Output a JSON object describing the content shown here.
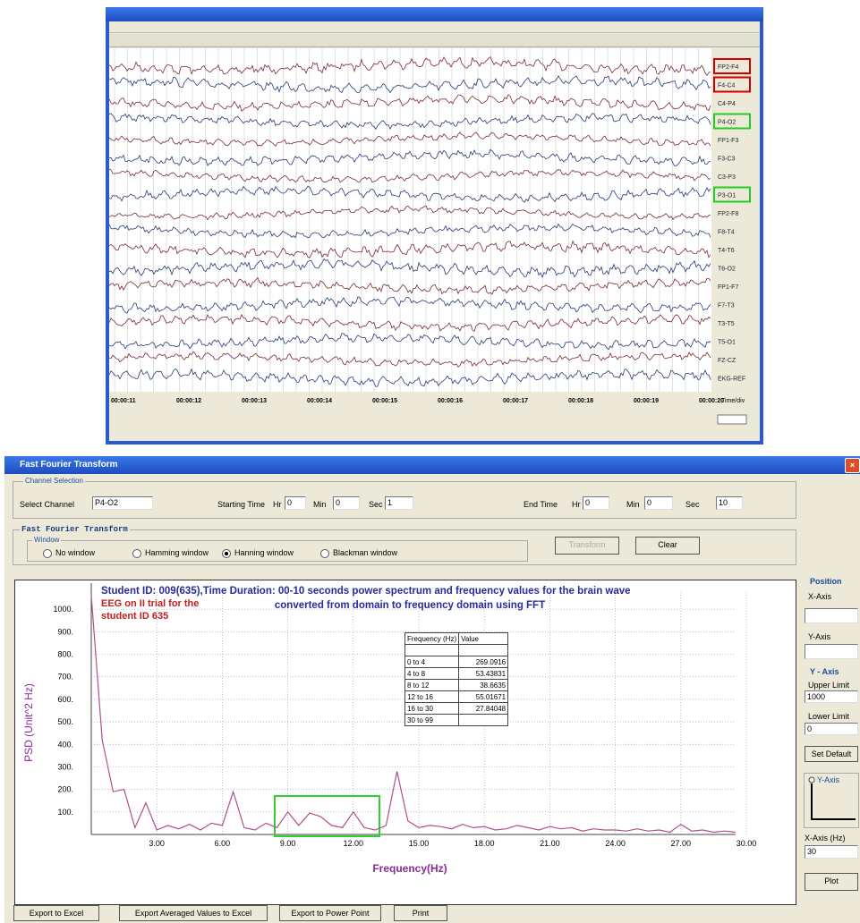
{
  "eeg_window": {
    "channels": [
      "FP2-F4",
      "F4-C4",
      "C4-P4",
      "P4-O2",
      "FP1-F3",
      "F3-C3",
      "C3-P3",
      "P3-O1",
      "FP2-F8",
      "F8-T4",
      "T4-T6",
      "T6-O2",
      "FP1-F7",
      "F7-T3",
      "T3-T5",
      "T5-O1",
      "FZ-CZ",
      "EKG-REF"
    ],
    "time_labels": [
      "00:00:11",
      "00:00:12",
      "00:00:13",
      "00:00:14",
      "00:00:15",
      "00:00:16",
      "00:00:17",
      "00:00:18",
      "00:00:19",
      "00:00:20"
    ],
    "time_div": "Time/div"
  },
  "fft_window": {
    "title": "Fast Fourier Transform",
    "channel_selection": {
      "group": "Channel Selection",
      "select_label": "Select Channel",
      "channel": "P4-O2",
      "starting_time": "Starting Time",
      "start_hr_label": "Hr",
      "start_hr": "0",
      "start_min_label": "Min",
      "start_min": "0",
      "start_sec_label": "Sec",
      "start_sec": "1",
      "end_time": "End Time",
      "end_hr_label": "Hr",
      "end_hr": "0",
      "end_min_label": "Min",
      "end_min": "0",
      "end_sec_label": "Sec",
      "end_sec": "10"
    },
    "transform_group": {
      "title": "Fast Fourier Transform",
      "window_label": "Window",
      "options": [
        "No window",
        "Hamming window",
        "Hanning window",
        "Blackman window"
      ],
      "selected": "Hanning window",
      "transform_button": "Transform",
      "clear_button": "Clear"
    },
    "right_panel": {
      "position": "Position",
      "x_axis": "X-Axis",
      "y_axis": "Y-Axis",
      "y_axis_group": "Y - Axis",
      "upper_limit": "Upper Limit",
      "upper_value": "1000",
      "lower_limit": "Lower Limit",
      "lower_value": "0",
      "set_default": "Set Default",
      "y_axis_radio": "Y-Axis",
      "x_axis_hz": "X-Axis (Hz)",
      "x_axis_value": "30",
      "plot": "Plot"
    },
    "buttons": [
      "Export to Excel",
      "Export Averaged Values to Excel",
      "Export to Power Point",
      "Print"
    ]
  },
  "chart_data": {
    "type": "line",
    "title_line1": "Student ID: 009(635),Time Duration: 00-10 seconds power spectrum and frequency values for the brain wave",
    "title_line2": "converted from domain to frequency domain using FFT",
    "annotation_line1": "EEG on II trial for the",
    "annotation_line2": "student ID 635",
    "x_label": "Frequency(Hz)",
    "y_label": "PSD (Unit^2 Hz)",
    "x": [
      0,
      0.5,
      1,
      1.5,
      2,
      2.5,
      3,
      3.5,
      4,
      4.5,
      5,
      5.5,
      6,
      6.5,
      7,
      7.5,
      8,
      8.5,
      9,
      9.5,
      10,
      10.5,
      11,
      11.5,
      12,
      12.5,
      13,
      13.5,
      14,
      14.5,
      15,
      15.5,
      16,
      16.5,
      17,
      17.5,
      18,
      18.5,
      19,
      19.5,
      20,
      20.5,
      21,
      21.5,
      22,
      22.5,
      23,
      23.5,
      24,
      24.5,
      25,
      25.5,
      26,
      26.5,
      27,
      27.5,
      28,
      28.5,
      29,
      29.5
    ],
    "series": [
      {
        "color": "#b0508a",
        "values": [
          1060,
          420,
          190,
          200,
          30,
          140,
          20,
          40,
          25,
          45,
          20,
          50,
          40,
          190,
          30,
          20,
          50,
          30,
          100,
          40,
          95,
          80,
          40,
          30,
          100,
          30,
          20,
          40,
          280,
          60,
          30,
          40,
          35,
          25,
          45,
          30,
          35,
          20,
          25,
          40,
          30,
          20,
          35,
          25,
          30,
          15,
          25,
          20,
          20,
          15,
          25,
          15,
          20,
          10,
          45,
          15,
          20,
          10,
          15,
          10
        ]
      }
    ],
    "xlim": [
      0,
      30
    ],
    "ylim": [
      0,
      1100
    ],
    "xticks": [
      {
        "value": 3,
        "label": "3.00"
      },
      {
        "value": 6,
        "label": "6.00"
      },
      {
        "value": 9,
        "label": "9.00"
      },
      {
        "value": 12,
        "label": "12.00"
      },
      {
        "value": 15,
        "label": "15.00"
      },
      {
        "value": 18,
        "label": "18.00"
      },
      {
        "value": 21,
        "label": "21.00"
      },
      {
        "value": 24,
        "label": "24.00"
      },
      {
        "value": 27,
        "label": "27.00"
      },
      {
        "value": 30,
        "label": "30.00"
      }
    ],
    "yticks": [
      {
        "value": 100,
        "label": "100."
      },
      {
        "value": 200,
        "label": "200."
      },
      {
        "value": 300,
        "label": "300."
      },
      {
        "value": 400,
        "label": "400."
      },
      {
        "value": 500,
        "label": "500."
      },
      {
        "value": 600,
        "label": "600."
      },
      {
        "value": 700,
        "label": "700."
      },
      {
        "value": 800,
        "label": "800."
      },
      {
        "value": 900,
        "label": "900."
      },
      {
        "value": 1000,
        "label": "1000."
      }
    ],
    "grid": true,
    "table": {
      "header": [
        "Frequency (Hz)",
        "Value"
      ],
      "rows": [
        [
          "0 to 4",
          269.0916
        ],
        [
          "4 to 8",
          53.43831
        ],
        [
          "8 to 12",
          38.6635
        ],
        [
          "12 to 16",
          55.01671
        ],
        [
          "16 to 30",
          27.84048
        ],
        [
          "30 to 99"
        ]
      ]
    }
  }
}
